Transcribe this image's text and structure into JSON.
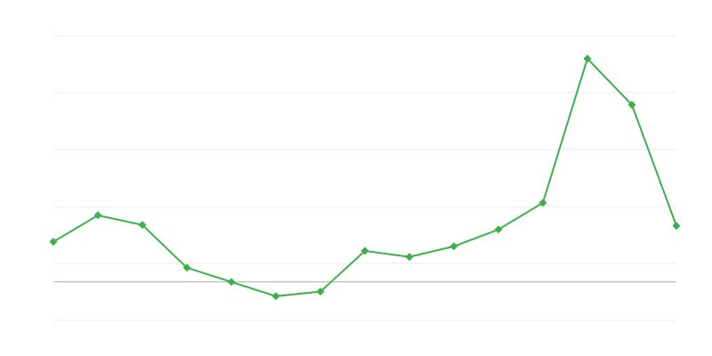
{
  "chart_data": {
    "type": "line",
    "categories": [
      null,
      null,
      null,
      null,
      null,
      null,
      null,
      null,
      null,
      null,
      null,
      null,
      null,
      null,
      null
    ],
    "values": [
      14.1,
      23.4,
      20,
      5,
      0,
      -5,
      -3.4,
      10.9,
      8.8,
      12.5,
      18.4,
      27.8,
      78.4,
      62.2,
      19.7
    ],
    "color": "#3bb04b",
    "ylim": [
      -13.5,
      86.5
    ],
    "yticks": [
      -13.5,
      6.5,
      26.5,
      46.5,
      66.5,
      86.5
    ],
    "grid": true,
    "baseline": 0,
    "marker": "diamond"
  }
}
